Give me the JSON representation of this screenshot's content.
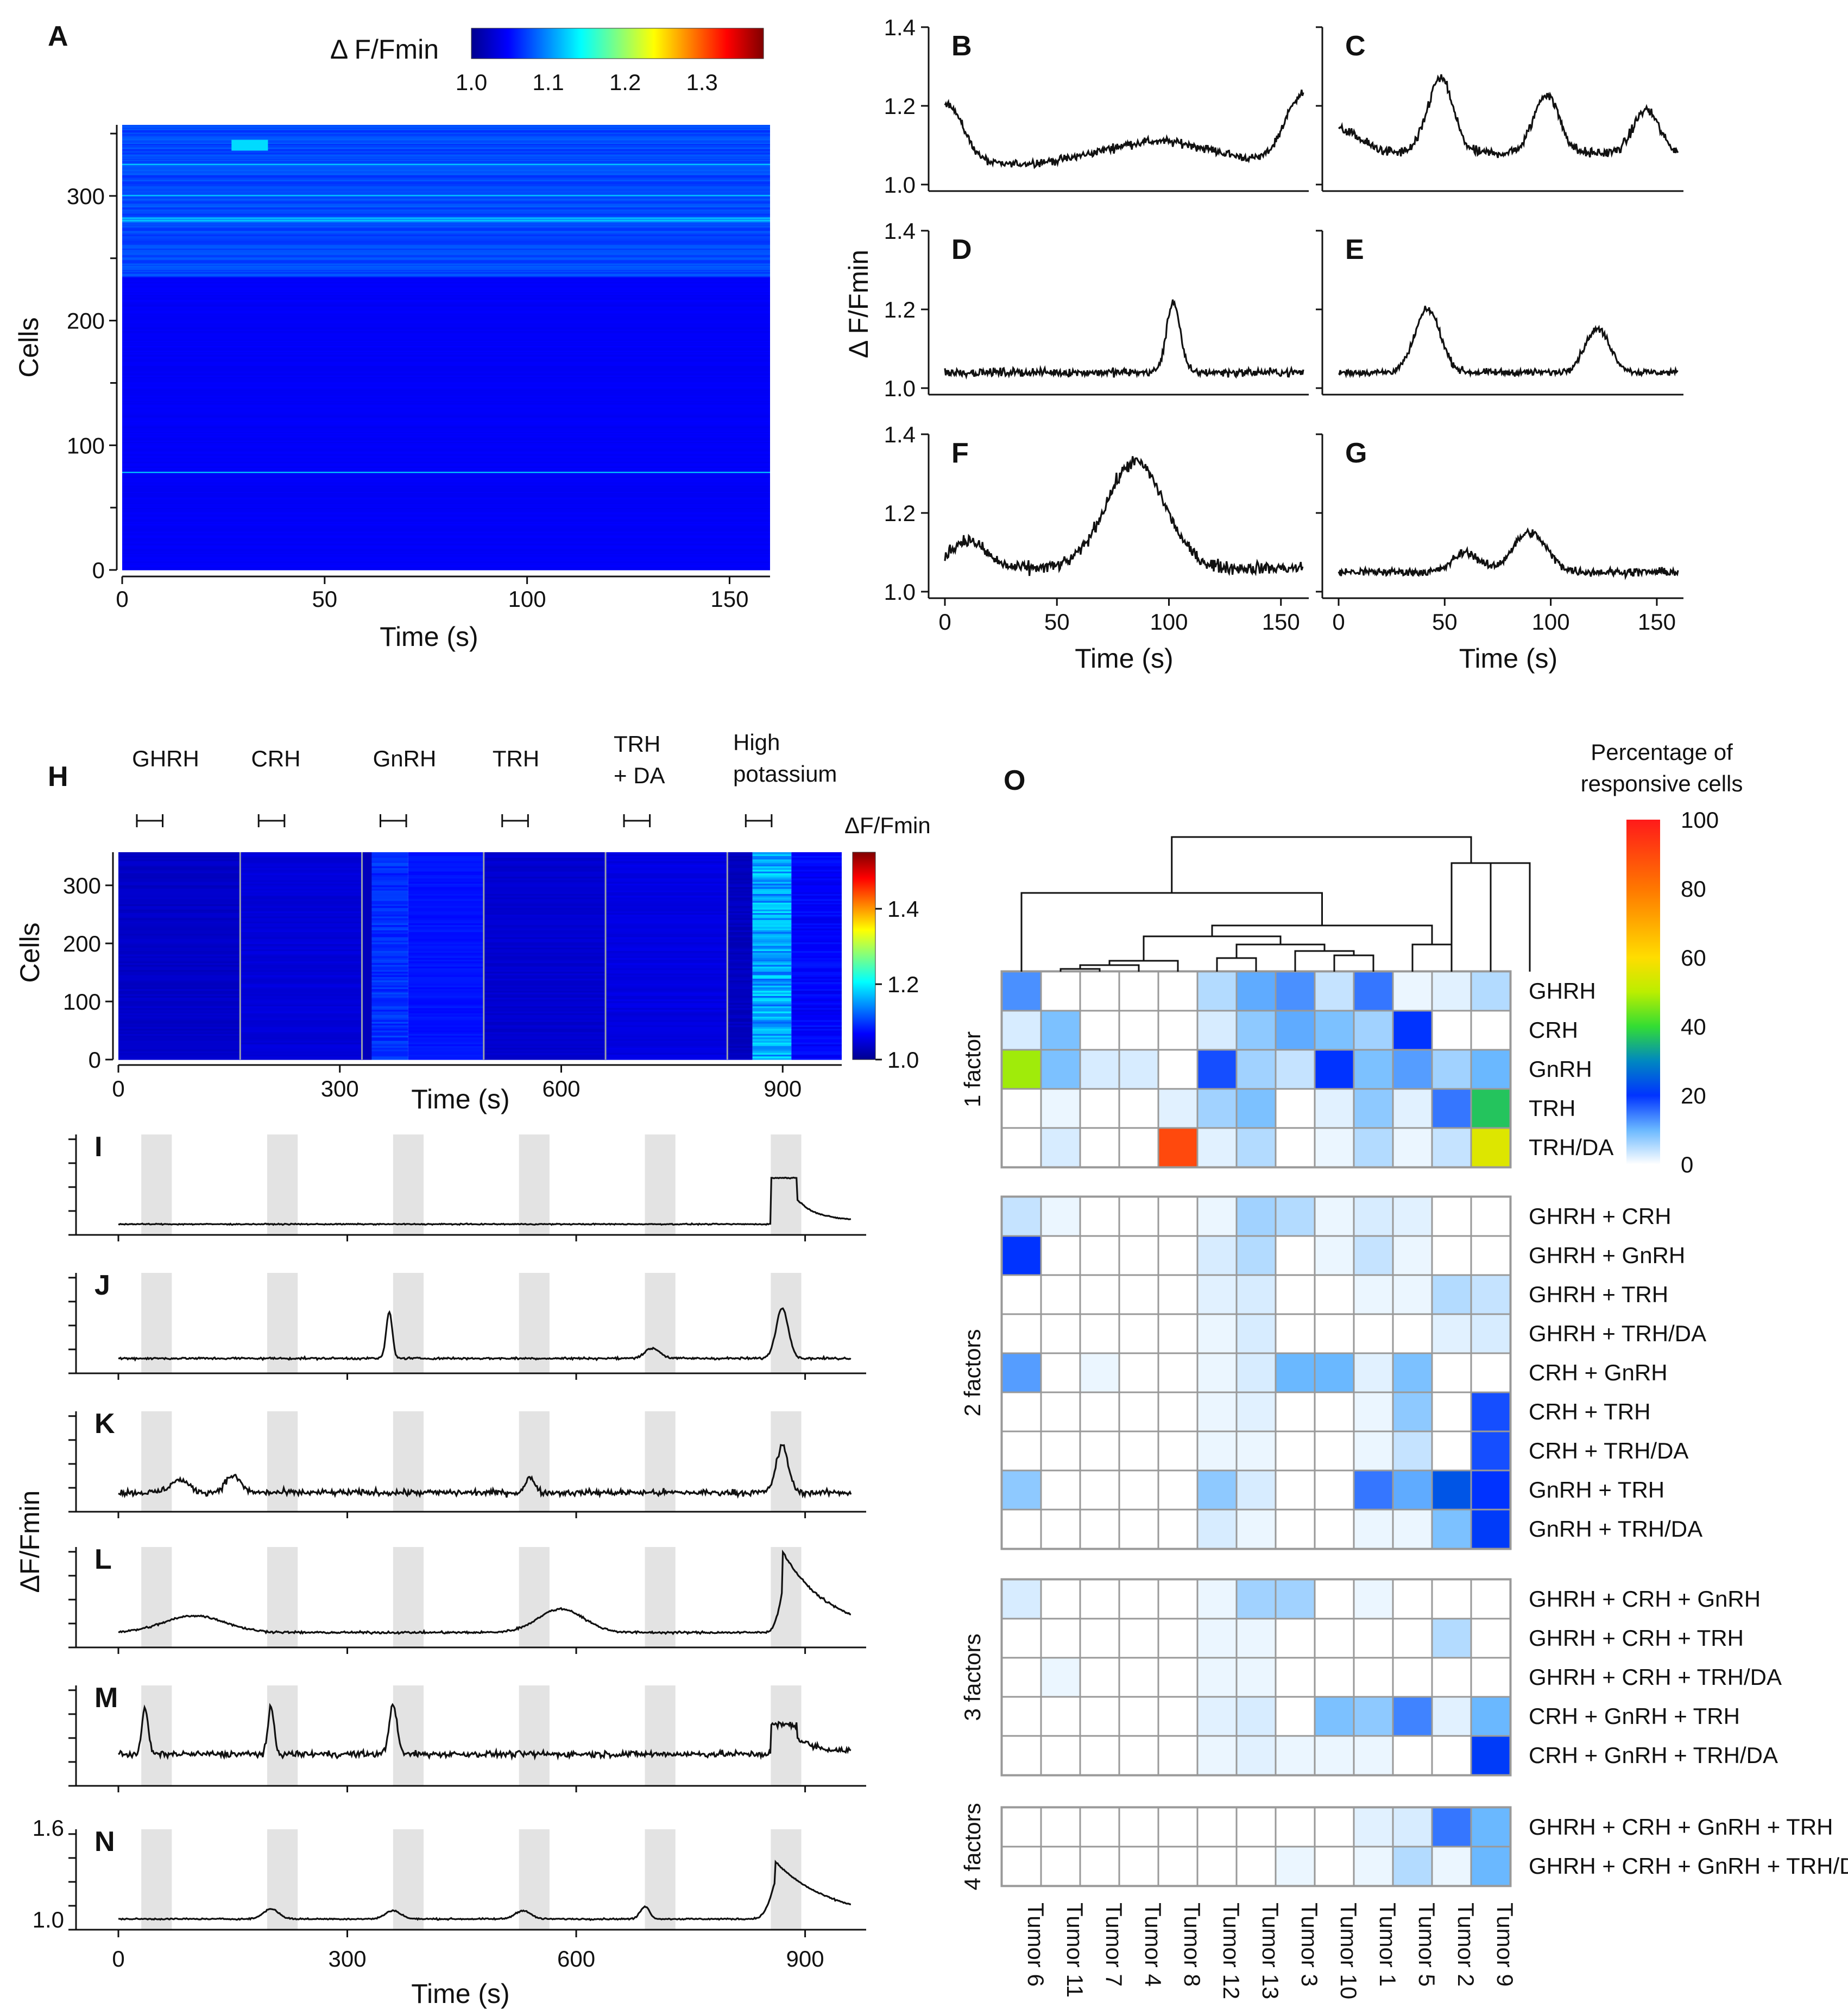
{
  "figure_labels": {
    "A": "A",
    "B": "B",
    "C": "C",
    "D": "D",
    "E": "E",
    "F": "F",
    "G": "G",
    "H": "H",
    "I": "I",
    "J": "J",
    "K": "K",
    "L": "L",
    "M": "M",
    "N": "N",
    "O": "O"
  },
  "colors": {
    "trace": "#111111",
    "stim_band": "#e3e3e3",
    "grid_border": "#999999",
    "jet": [
      "#00008f",
      "#0000ff",
      "#0080ff",
      "#00ffff",
      "#80ff80",
      "#ffff00",
      "#ff8000",
      "#ff0000",
      "#800000"
    ],
    "pct_scale": [
      "#ffffff",
      "#b8dcff",
      "#3aa0ff",
      "#0033ff",
      "#00c8a0",
      "#66e000",
      "#ffe000",
      "#ff8c00",
      "#ff1a1a"
    ]
  },
  "chart_data": [
    {
      "id": "A",
      "type": "heatmap",
      "colorbar_title": "Δ F/Fmin",
      "colorbar_ticks": [
        "1.0",
        "1.1",
        "1.2",
        "1.3"
      ],
      "colorbar_range": [
        1.0,
        1.38
      ],
      "xlabel": "Time (s)",
      "ylabel": "Cells",
      "xlim": [
        0,
        160
      ],
      "ylim": [
        0,
        357
      ],
      "xticks": [
        "0",
        "50",
        "100",
        "150"
      ],
      "xtick_values": [
        0,
        50,
        100,
        150
      ],
      "yticks": [
        "0",
        "100",
        "200",
        "300"
      ],
      "ytick_values": [
        0,
        100,
        200,
        300
      ],
      "n_cells": 357,
      "bright_region_cells": [
        235,
        357
      ]
    },
    {
      "id": "BG",
      "type": "line",
      "ylabel": "Δ F/Fmin",
      "xlabel": "Time (s)",
      "ylim": [
        1.0,
        1.4
      ],
      "xlim": [
        0,
        160
      ],
      "yticks": [
        "1.0",
        "1.2",
        "1.4"
      ],
      "ytick_values": [
        1.0,
        1.2,
        1.4
      ],
      "xticks": [
        "0",
        "50",
        "100",
        "150"
      ],
      "xtick_values": [
        0,
        50,
        100,
        150
      ],
      "panels": [
        {
          "label": "B",
          "base": 1.05,
          "noise": 0.01,
          "peaks": [
            [
              0,
              0.16,
              8
            ],
            [
              160,
              0.18,
              8
            ],
            [
              95,
              0.06,
              25
            ]
          ]
        },
        {
          "label": "C",
          "base": 1.08,
          "noise": 0.012,
          "peaks": [
            [
              48,
              0.19,
              6
            ],
            [
              98,
              0.15,
              6
            ],
            [
              145,
              0.11,
              6
            ],
            [
              0,
              0.06,
              10
            ]
          ]
        },
        {
          "label": "D",
          "base": 1.04,
          "noise": 0.01,
          "peaks": [
            [
              102,
              0.18,
              3
            ]
          ]
        },
        {
          "label": "E",
          "base": 1.04,
          "noise": 0.008,
          "peaks": [
            [
              42,
              0.16,
              6
            ],
            [
              122,
              0.11,
              6
            ]
          ]
        },
        {
          "label": "F",
          "base": 1.06,
          "noise": 0.015,
          "peaks": [
            [
              10,
              0.07,
              8
            ],
            [
              85,
              0.27,
              13
            ]
          ]
        },
        {
          "label": "G",
          "base": 1.05,
          "noise": 0.01,
          "peaks": [
            [
              60,
              0.05,
              6
            ],
            [
              90,
              0.1,
              8
            ]
          ]
        }
      ]
    },
    {
      "id": "H",
      "type": "heatmap",
      "stimuli": [
        "GHRH",
        "CRH",
        "GnRH",
        "TRH",
        "TRH\n+ DA",
        "High\npotassium"
      ],
      "stimulus_times": [
        25,
        190,
        355,
        520,
        685,
        850
      ],
      "colorbar_title": "ΔF/Fmin",
      "colorbar_ticks": [
        "1.0",
        "1.2",
        "1.4"
      ],
      "colorbar_range": [
        1.0,
        1.55
      ],
      "xlabel": "Time (s)",
      "ylabel": "Cells",
      "xlim": [
        0,
        980
      ],
      "ylim": [
        0,
        357
      ],
      "xticks": [
        "0",
        "300",
        "600",
        "900"
      ],
      "xtick_values": [
        0,
        300,
        600,
        900
      ],
      "yticks": [
        "0",
        "100",
        "200",
        "300"
      ],
      "ytick_values": [
        0,
        100,
        200,
        300
      ],
      "segment_boundaries": [
        165,
        330,
        495,
        660,
        825
      ]
    },
    {
      "id": "IN",
      "type": "line",
      "ylabel": "ΔF/Fmin",
      "xlabel": "Time (s)",
      "xlim": [
        0,
        980
      ],
      "xticks": [
        "0",
        "300",
        "600",
        "900"
      ],
      "xtick_values": [
        0,
        300,
        600,
        900
      ],
      "n_yticks": [
        "1.0",
        "1.6"
      ],
      "stim_window": [
        25,
        55
      ],
      "panels": [
        {
          "label": "I",
          "base": 0.05,
          "noise": 0.006,
          "peaks": [
            [
              870,
              0.55,
              0,
              "plateau"
            ]
          ]
        },
        {
          "label": "J",
          "base": 0.1,
          "noise": 0.012,
          "peaks": [
            [
              355,
              0.55,
              4
            ],
            [
              700,
              0.12,
              10
            ],
            [
              870,
              0.6,
              8
            ]
          ]
        },
        {
          "label": "K",
          "base": 0.15,
          "noise": 0.035,
          "peaks": [
            [
              80,
              0.15,
              12
            ],
            [
              150,
              0.2,
              10
            ],
            [
              540,
              0.18,
              6
            ],
            [
              870,
              0.55,
              8
            ]
          ]
        },
        {
          "label": "L",
          "base": 0.1,
          "noise": 0.012,
          "peaks": [
            [
              100,
              0.2,
              40
            ],
            [
              580,
              0.28,
              30
            ],
            [
              880,
              0.82,
              10,
              "slow"
            ]
          ]
        },
        {
          "label": "M",
          "base": 0.3,
          "noise": 0.035,
          "peaks": [
            [
              35,
              0.55,
              4
            ],
            [
              200,
              0.55,
              4
            ],
            [
              360,
              0.6,
              5
            ],
            [
              870,
              0.35,
              0,
              "plateau"
            ]
          ]
        },
        {
          "label": "N",
          "base": 0.05,
          "noise": 0.008,
          "peaks": [
            [
              200,
              0.12,
              10
            ],
            [
              360,
              0.1,
              10
            ],
            [
              530,
              0.1,
              10
            ],
            [
              690,
              0.15,
              6
            ],
            [
              870,
              0.6,
              12,
              "slow"
            ]
          ]
        }
      ]
    },
    {
      "id": "O",
      "type": "heatmap",
      "colorbar_title": "Percentage of\nresponsive cells",
      "colorbar_ticks": [
        "0",
        "20",
        "40",
        "60",
        "80",
        "100"
      ],
      "colorbar_range": [
        0,
        100
      ],
      "columns": [
        "Tumor 6",
        "Tumor 11",
        "Tumor 7",
        "Tumor 4",
        "Tumor 8",
        "Tumor 12",
        "Tumor 13",
        "Tumor 3",
        "Tumor 10",
        "Tumor 1",
        "Tumor 5",
        "Tumor 2",
        "Tumor 9"
      ],
      "groups": [
        {
          "name": "1 factor",
          "rows": [
            "GHRH",
            "CRH",
            "GnRH",
            "TRH",
            "TRH/DA"
          ]
        },
        {
          "name": "2 factors",
          "rows": [
            "GHRH + CRH",
            "GHRH + GnRH",
            "GHRH + TRH",
            "GHRH + TRH/DA",
            "CRH + GnRH",
            "CRH + TRH",
            "CRH + TRH/DA",
            "GnRH + TRH",
            "GnRH + TRH/DA"
          ]
        },
        {
          "name": "3  factors",
          "rows": [
            "GHRH + CRH + GnRH",
            "GHRH + CRH + TRH",
            "GHRH + CRH + TRH/DA",
            "CRH + GnRH + TRH",
            "CRH + GnRH + TRH/DA"
          ]
        },
        {
          "name": "4 factors",
          "rows": [
            "GHRH + CRH + GnRH + TRH",
            "GHRH + CRH + GnRH + TRH/DA"
          ]
        }
      ],
      "values": [
        [
          13,
          0,
          0,
          0,
          0,
          6,
          11,
          13,
          5,
          15,
          2,
          3,
          6
        ],
        [
          4,
          9,
          0,
          0,
          0,
          4,
          8,
          11,
          9,
          7,
          20,
          0,
          0
        ],
        [
          48,
          9,
          4,
          4,
          0,
          18,
          7,
          5,
          20,
          9,
          12,
          7,
          10
        ],
        [
          0,
          2,
          0,
          0,
          3,
          7,
          9,
          0,
          3,
          8,
          3,
          15,
          37
        ],
        [
          0,
          4,
          0,
          0,
          90,
          3,
          6,
          0,
          2,
          6,
          2,
          5,
          55
        ],
        [
          5,
          2,
          0,
          0,
          0,
          2,
          7,
          6,
          2,
          4,
          3,
          0,
          0
        ],
        [
          20,
          0,
          0,
          0,
          0,
          4,
          6,
          0,
          2,
          5,
          2,
          0,
          0
        ],
        [
          0,
          0,
          0,
          0,
          0,
          3,
          4,
          0,
          0,
          2,
          2,
          6,
          5
        ],
        [
          0,
          0,
          0,
          0,
          0,
          2,
          4,
          0,
          0,
          0,
          0,
          3,
          4
        ],
        [
          12,
          0,
          2,
          0,
          0,
          2,
          4,
          10,
          10,
          3,
          9,
          0,
          0
        ],
        [
          0,
          0,
          0,
          0,
          0,
          2,
          3,
          0,
          0,
          2,
          8,
          0,
          18
        ],
        [
          0,
          0,
          0,
          0,
          0,
          2,
          2,
          0,
          0,
          2,
          5,
          0,
          18
        ],
        [
          8,
          0,
          0,
          0,
          0,
          8,
          4,
          0,
          0,
          15,
          11,
          24,
          20
        ],
        [
          0,
          0,
          0,
          0,
          0,
          4,
          2,
          0,
          0,
          2,
          2,
          9,
          21
        ],
        [
          4,
          0,
          0,
          0,
          0,
          2,
          7,
          7,
          0,
          2,
          0,
          0,
          0
        ],
        [
          0,
          0,
          0,
          0,
          0,
          2,
          2,
          0,
          0,
          0,
          0,
          6,
          0
        ],
        [
          0,
          2,
          0,
          0,
          0,
          2,
          2,
          0,
          0,
          0,
          0,
          0,
          0
        ],
        [
          0,
          0,
          0,
          0,
          0,
          3,
          4,
          0,
          9,
          8,
          14,
          3,
          10
        ],
        [
          0,
          0,
          0,
          0,
          0,
          2,
          3,
          2,
          2,
          2,
          0,
          0,
          21
        ],
        [
          0,
          0,
          0,
          0,
          0,
          0,
          0,
          0,
          0,
          3,
          4,
          15,
          10
        ],
        [
          0,
          0,
          0,
          0,
          0,
          0,
          0,
          2,
          0,
          2,
          6,
          2,
          10
        ]
      ],
      "dendrogram": "hierarchical clustering of tumors"
    }
  ]
}
